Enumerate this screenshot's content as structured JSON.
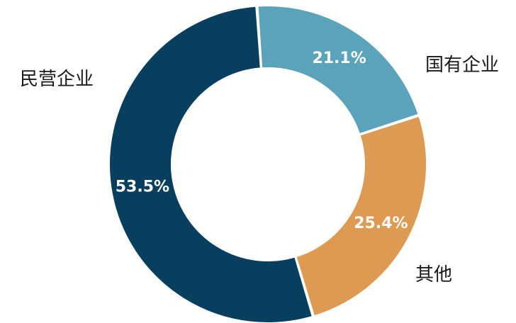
{
  "chart_data": {
    "type": "pie",
    "variant": "donut",
    "title": "",
    "slices": [
      {
        "label": "国有企业",
        "value": 21.1,
        "value_label": "21.1%",
        "color": "#5ba3bb"
      },
      {
        "label": "其他",
        "value": 25.4,
        "value_label": "25.4%",
        "color": "#dd9a52"
      },
      {
        "label": "民营企业",
        "value": 53.5,
        "value_label": "53.5%",
        "color": "#083f5e"
      }
    ],
    "legend": "none",
    "labels_outside": true
  }
}
